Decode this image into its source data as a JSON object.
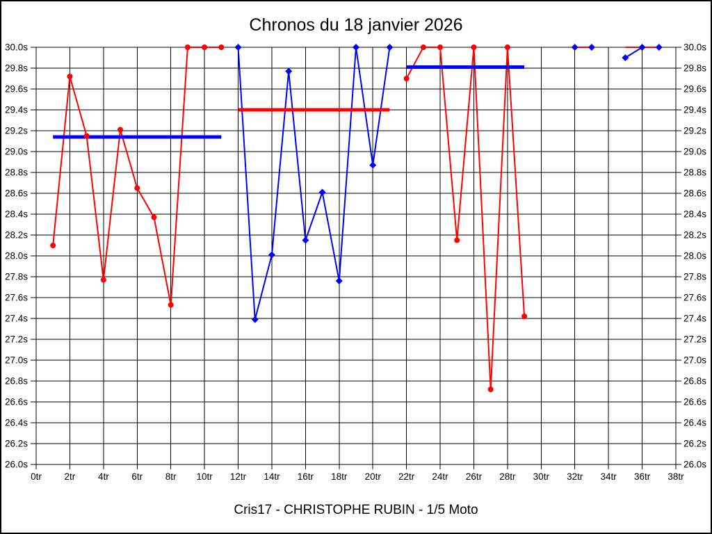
{
  "page": {
    "background": "#ffffff",
    "border_color": "#000000"
  },
  "chart_data": {
    "type": "line",
    "title": "Chronos du 18 janvier 2026",
    "caption": "Cris17 - CHRISTOPHE RUBIN - 1/5 Moto",
    "x_unit": "tr",
    "y_unit": "s",
    "xlim": [
      0,
      38
    ],
    "ylim": [
      26.0,
      30.0
    ],
    "grid": true,
    "legend": "none",
    "colors": {
      "red": "#ff0000",
      "blue": "#0000ff",
      "grid": "#000000",
      "text": "#000000"
    },
    "x_ticks": [
      {
        "v": 0,
        "label": "0tr"
      },
      {
        "v": 2,
        "label": "2tr"
      },
      {
        "v": 4,
        "label": "4tr"
      },
      {
        "v": 6,
        "label": "6tr"
      },
      {
        "v": 8,
        "label": "8tr"
      },
      {
        "v": 10,
        "label": "10tr"
      },
      {
        "v": 12,
        "label": "12tr"
      },
      {
        "v": 14,
        "label": "14tr"
      },
      {
        "v": 16,
        "label": "16tr"
      },
      {
        "v": 18,
        "label": "18tr"
      },
      {
        "v": 20,
        "label": "20tr"
      },
      {
        "v": 22,
        "label": "22tr"
      },
      {
        "v": 24,
        "label": "24tr"
      },
      {
        "v": 26,
        "label": "26tr"
      },
      {
        "v": 28,
        "label": "28tr"
      },
      {
        "v": 30,
        "label": "30tr"
      },
      {
        "v": 32,
        "label": "32tr"
      },
      {
        "v": 34,
        "label": "34tr"
      },
      {
        "v": 36,
        "label": "36tr"
      },
      {
        "v": 38,
        "label": "38tr"
      }
    ],
    "y_ticks": [
      {
        "v": 30.0,
        "label": "30.0s"
      },
      {
        "v": 29.8,
        "label": "29.8s"
      },
      {
        "v": 29.6,
        "label": "29.6s"
      },
      {
        "v": 29.4,
        "label": "29.4s"
      },
      {
        "v": 29.2,
        "label": "29.2s"
      },
      {
        "v": 29.0,
        "label": "29.0s"
      },
      {
        "v": 28.8,
        "label": "28.8s"
      },
      {
        "v": 28.6,
        "label": "28.6s"
      },
      {
        "v": 28.4,
        "label": "28.4s"
      },
      {
        "v": 28.2,
        "label": "28.2s"
      },
      {
        "v": 28.0,
        "label": "28.0s"
      },
      {
        "v": 27.8,
        "label": "27.8s"
      },
      {
        "v": 27.6,
        "label": "27.6s"
      },
      {
        "v": 27.4,
        "label": "27.4s"
      },
      {
        "v": 27.2,
        "label": "27.2s"
      },
      {
        "v": 27.0,
        "label": "27.0s"
      },
      {
        "v": 26.8,
        "label": "26.8s"
      },
      {
        "v": 26.6,
        "label": "26.6s"
      },
      {
        "v": 26.4,
        "label": "26.4s"
      },
      {
        "v": 26.2,
        "label": "26.2s"
      },
      {
        "v": 26.0,
        "label": "26.0s"
      }
    ],
    "series": [
      {
        "name": "blue-lap-times-stint-2",
        "color": "#0000ff",
        "marker": "diamond",
        "draw_line": true,
        "points": [
          [
            12,
            30.0
          ],
          [
            13,
            27.39
          ],
          [
            14,
            28.01
          ],
          [
            15,
            29.77
          ],
          [
            16,
            28.15
          ],
          [
            17,
            28.61
          ],
          [
            18,
            27.76
          ],
          [
            19,
            30.0
          ],
          [
            20,
            28.87
          ],
          [
            21,
            30.0
          ]
        ]
      },
      {
        "name": "blue-lap-times-35-37",
        "color": "#0000ff",
        "marker": "diamond",
        "draw_line": true,
        "points": [
          [
            35,
            29.9
          ],
          [
            36,
            30.0
          ],
          [
            37,
            30.0
          ]
        ]
      },
      {
        "name": "red-lap-times-stint-1",
        "color": "#ff0000",
        "marker": "circle",
        "draw_line": true,
        "points": [
          [
            1,
            28.1
          ],
          [
            2,
            29.72
          ],
          [
            3,
            29.15
          ],
          [
            4,
            27.77
          ],
          [
            5,
            29.21
          ],
          [
            6,
            28.65
          ],
          [
            7,
            28.37
          ],
          [
            8,
            27.53
          ],
          [
            9,
            30.0
          ],
          [
            10,
            30.0
          ],
          [
            11,
            30.0
          ]
        ]
      },
      {
        "name": "red-lap-times-stint-3",
        "color": "#ff0000",
        "marker": "circle",
        "draw_line": true,
        "points": [
          [
            22,
            29.7
          ],
          [
            23,
            30.0
          ],
          [
            24,
            30.0
          ],
          [
            25,
            28.15
          ],
          [
            26,
            30.0
          ],
          [
            27,
            26.72
          ],
          [
            28,
            30.0
          ],
          [
            29,
            27.42
          ]
        ]
      },
      {
        "name": "red-line-32-33",
        "color": "#ff0000",
        "marker": "none",
        "draw_line": true,
        "points": [
          [
            32,
            30.0
          ],
          [
            33,
            30.0
          ]
        ]
      },
      {
        "name": "red-line-35-37",
        "color": "#ff0000",
        "marker": "none",
        "draw_line": true,
        "points": [
          [
            35,
            30.0
          ],
          [
            36,
            30.0
          ],
          [
            37,
            30.0
          ]
        ]
      },
      {
        "name": "blue-markers-32-33",
        "color": "#0000ff",
        "marker": "diamond",
        "draw_line": false,
        "points": [
          [
            32,
            30.0
          ],
          [
            33,
            30.0
          ]
        ]
      }
    ],
    "average_lines": [
      {
        "name": "blue-average-stint-1",
        "color": "#0000ff",
        "x1": 1,
        "x2": 11,
        "y": 29.14
      },
      {
        "name": "red-average-stint-2",
        "color": "#ff0000",
        "x1": 12,
        "x2": 21,
        "y": 29.4
      },
      {
        "name": "blue-average-stint-3",
        "color": "#0000ff",
        "x1": 22,
        "x2": 29,
        "y": 29.81
      }
    ]
  }
}
